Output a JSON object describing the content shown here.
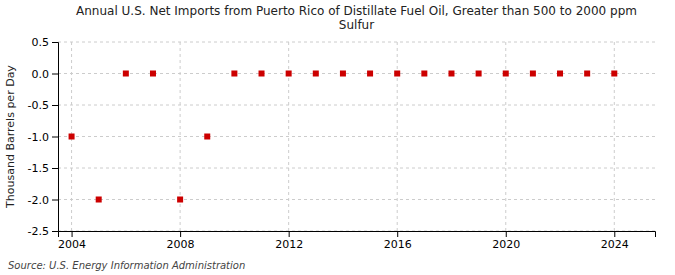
{
  "chart_data": {
    "type": "scatter",
    "title": "Annual U.S. Net Imports from Puerto Rico of Distillate Fuel Oil, Greater than 500 to 2000 ppm\nSulfur",
    "ylabel": "Thousand Barrels per Day",
    "source": "Source: U.S. Energy Information Administration",
    "x": [
      2004,
      2005,
      2006,
      2007,
      2008,
      2009,
      2010,
      2011,
      2012,
      2013,
      2014,
      2015,
      2016,
      2017,
      2018,
      2019,
      2020,
      2021,
      2022,
      2023,
      2024
    ],
    "values": [
      -1.0,
      -2.0,
      0.0,
      0.0,
      -2.0,
      -1.0,
      0.0,
      0.0,
      0.0,
      0.0,
      0.0,
      0.0,
      0.0,
      0.0,
      0.0,
      0.0,
      0.0,
      0.0,
      0.0,
      0.0,
      0.0
    ],
    "color": "#cc0000",
    "marker": "square",
    "xlim": [
      2003.5,
      2025.5
    ],
    "xticks": [
      2004,
      2008,
      2012,
      2016,
      2020,
      2024
    ],
    "ylim": [
      -2.5,
      0.5
    ],
    "yticks": [
      0.5,
      {
        "value": 0.0,
        "label": "0.0"
      },
      -0.5,
      {
        "value": -1.0,
        "label": "-1.0"
      },
      -1.5,
      {
        "value": -2.0,
        "label": "-2.0"
      },
      -2.5
    ],
    "grid": true
  }
}
